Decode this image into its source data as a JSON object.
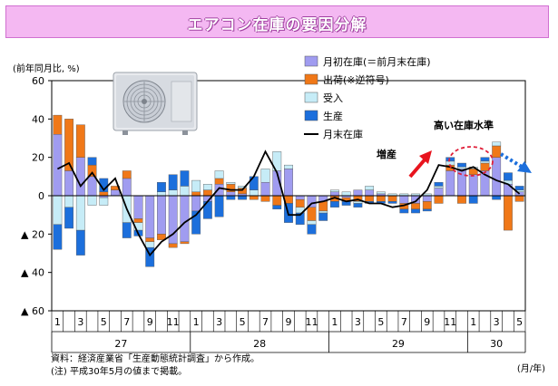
{
  "title": "エアコン在庫の要因分解",
  "unit_label": "(前年同月比, %)",
  "notes": {
    "source": "資料：経済産業省「生産動態統計調査」から作成。",
    "note": "(注) 平成30年5月の値まで掲載。"
  },
  "x_unit_label": "(月/年)",
  "annotations": {
    "increase": "増産",
    "high_inventory": "高い在庫水準"
  },
  "colors": {
    "opening": "#a09cf0",
    "shipment": "#f07818",
    "receipt": "#c6ecf7",
    "production": "#1c6fdc",
    "line": "#000000",
    "arrow_red": "#e8141e",
    "arrow_blue": "#1c6fdc",
    "circle": "#e0203a"
  },
  "chart_data": {
    "type": "bar",
    "stacked": true,
    "ylim": [
      -60,
      60
    ],
    "yticks": [
      60,
      40,
      20,
      0,
      -20,
      -40,
      -60
    ],
    "ytick_labels": [
      "60",
      "40",
      "20",
      "0",
      "▲ 20",
      "▲ 40",
      "▲ 60"
    ],
    "grid": false,
    "legend_position": "top-right",
    "month_labels": [
      "1",
      "",
      "3",
      "",
      "5",
      "",
      "7",
      "",
      "9",
      "",
      "11",
      "",
      "1",
      "",
      "3",
      "",
      "5",
      "",
      "7",
      "",
      "9",
      "",
      "11",
      "",
      "1",
      "",
      "3",
      "",
      "5",
      "",
      "7",
      "",
      "9",
      "",
      "11",
      "",
      "1",
      "",
      "3",
      "",
      "5",
      ""
    ],
    "year_labels": [
      {
        "label": "27",
        "start": 0,
        "end": 11
      },
      {
        "label": "28",
        "start": 12,
        "end": 23
      },
      {
        "label": "29",
        "start": 24,
        "end": 35
      },
      {
        "label": "30",
        "start": 36,
        "end": 40
      }
    ],
    "categories": [
      "27/1",
      "27/2",
      "27/3",
      "27/4",
      "27/5",
      "27/6",
      "27/7",
      "27/8",
      "27/9",
      "27/10",
      "27/11",
      "27/12",
      "28/1",
      "28/2",
      "28/3",
      "28/4",
      "28/5",
      "28/6",
      "28/7",
      "28/8",
      "28/9",
      "28/10",
      "28/11",
      "28/12",
      "29/1",
      "29/2",
      "29/3",
      "29/4",
      "29/5",
      "29/6",
      "29/7",
      "29/8",
      "29/9",
      "29/10",
      "29/11",
      "29/12",
      "30/1",
      "30/2",
      "30/3",
      "30/4",
      "30/5"
    ],
    "series": [
      {
        "name": "月初在庫(＝前月末在庫)",
        "type": "bar",
        "color_key": "opening",
        "values": [
          32,
          13,
          20,
          10,
          -1,
          3,
          9,
          -12,
          -22,
          -20,
          -25,
          -24,
          -8,
          -3,
          6,
          2,
          1,
          0,
          7,
          13,
          14,
          -2,
          -6,
          -3,
          2,
          -1,
          3,
          3,
          1,
          0,
          -4,
          -4,
          -3,
          4,
          13,
          14,
          11,
          13,
          20,
          6,
          2
        ]
      },
      {
        "name": "出荷(※逆符号)",
        "type": "bar",
        "color_key": "shipment",
        "values": [
          10,
          27,
          17,
          6,
          2,
          2,
          4,
          -2,
          -2,
          -3,
          -2,
          -1,
          2,
          3,
          3,
          4,
          3,
          -2,
          -3,
          -5,
          -4,
          -4,
          -7,
          -5,
          -3,
          -2,
          -3,
          -3,
          -3,
          -3,
          -3,
          -3,
          -4,
          -4,
          3,
          -4,
          3,
          4,
          6,
          -18,
          -3
        ]
      },
      {
        "name": "受入",
        "type": "bar",
        "color_key": "receipt",
        "values": [
          -15,
          -6,
          -18,
          -5,
          -4,
          0,
          -14,
          -4,
          -3,
          2,
          3,
          5,
          6,
          3,
          4,
          1,
          1,
          3,
          7,
          10,
          2,
          -3,
          -2,
          -1,
          1,
          2,
          -1,
          2,
          1,
          1,
          1,
          1,
          1,
          1,
          2,
          1,
          1,
          1,
          2,
          2,
          1
        ]
      },
      {
        "name": "生産",
        "type": "bar",
        "color_key": "production",
        "values": [
          -13,
          -11,
          -13,
          4,
          7,
          0,
          -8,
          -3,
          -10,
          5,
          8,
          8,
          -12,
          -9,
          -11,
          -2,
          -2,
          7,
          0,
          -2,
          -10,
          -6,
          -5,
          -4,
          -3,
          -2,
          -2,
          -1,
          -1,
          -1,
          -2,
          -2,
          -1,
          2,
          2,
          2,
          -4,
          2,
          -2,
          4,
          2
        ]
      },
      {
        "name": "月末在庫",
        "type": "line",
        "color_key": "line",
        "values": [
          14,
          17,
          5,
          12,
          3,
          9,
          -7,
          -20,
          -31,
          -24,
          -20,
          -14,
          -10,
          -3,
          4,
          3,
          3,
          10,
          23,
          12,
          -10,
          -10,
          -4,
          -3,
          -1,
          -3,
          -2,
          -4,
          -4,
          -6,
          -5,
          -3,
          3,
          16,
          15,
          13,
          15,
          11,
          8,
          6,
          1
        ]
      }
    ]
  }
}
